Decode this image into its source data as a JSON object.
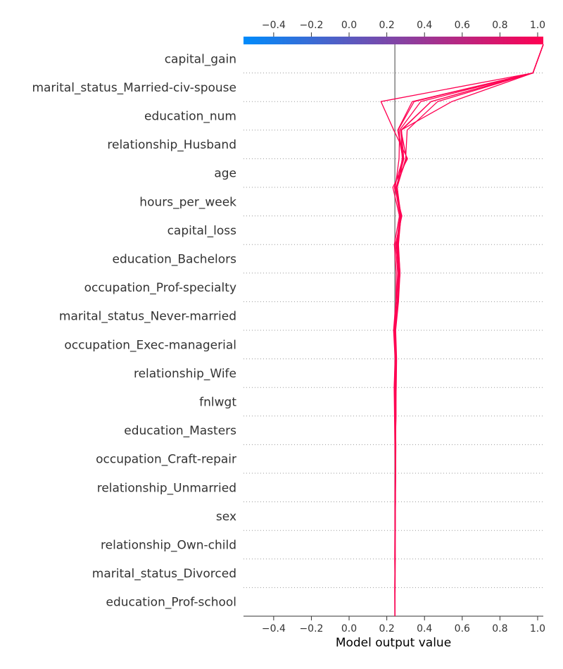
{
  "chart_data": {
    "type": "decision",
    "xlabel": "Model output value",
    "xlim": [
      -0.56,
      1.03
    ],
    "xticks": [
      -0.4,
      -0.2,
      0.0,
      0.2,
      0.4,
      0.6,
      0.8,
      1.0
    ],
    "xtick_labels": [
      "−0.4",
      "−0.2",
      "0.0",
      "0.2",
      "0.4",
      "0.6",
      "0.8",
      "1.0"
    ],
    "base_value": 0.243,
    "colorbar": {
      "range": [
        -0.56,
        1.03
      ],
      "colors": [
        "#008bfb",
        "#ff0052"
      ]
    },
    "grid": "dotted horizontal separators",
    "features": [
      "capital_gain",
      "marital_status_Married-civ-spouse",
      "education_num",
      "relationship_Husband",
      "age",
      "hours_per_week",
      "capital_loss",
      "education_Bachelors",
      "occupation_Prof-specialty",
      "marital_status_Never-married",
      "occupation_Exec-managerial",
      "relationship_Wife",
      "fnlwgt",
      "education_Masters",
      "occupation_Craft-repair",
      "relationship_Unmarried",
      "sex",
      "relationship_Own-child",
      "marital_status_Divorced",
      "education_Prof-school"
    ],
    "series": [
      {
        "color": "#ff0052",
        "values": [
          0.243,
          0.243,
          0.243,
          0.244,
          0.245,
          0.245,
          0.243,
          0.241,
          0.239,
          0.244,
          0.236,
          0.248,
          0.25,
          0.24,
          0.267,
          0.232,
          0.31,
          0.237,
          0.169,
          0.975,
          1.03
        ]
      },
      {
        "color": "#ff0052",
        "values": [
          0.243,
          0.244,
          0.242,
          0.243,
          0.244,
          0.246,
          0.244,
          0.243,
          0.24,
          0.245,
          0.238,
          0.25,
          0.258,
          0.246,
          0.28,
          0.24,
          0.285,
          0.258,
          0.335,
          0.975,
          1.03
        ]
      },
      {
        "color": "#ff0052",
        "values": [
          0.243,
          0.242,
          0.244,
          0.244,
          0.243,
          0.244,
          0.246,
          0.247,
          0.244,
          0.246,
          0.241,
          0.255,
          0.262,
          0.251,
          0.27,
          0.245,
          0.265,
          0.268,
          0.38,
          0.975,
          1.03
        ]
      },
      {
        "color": "#ff0052",
        "values": [
          0.243,
          0.243,
          0.244,
          0.245,
          0.246,
          0.245,
          0.247,
          0.248,
          0.248,
          0.25,
          0.245,
          0.26,
          0.267,
          0.258,
          0.277,
          0.25,
          0.29,
          0.278,
          0.435,
          0.975,
          1.03
        ]
      },
      {
        "color": "#ff0052",
        "values": [
          0.243,
          0.244,
          0.245,
          0.243,
          0.245,
          0.247,
          0.248,
          0.245,
          0.25,
          0.252,
          0.247,
          0.262,
          0.27,
          0.262,
          0.275,
          0.255,
          0.3,
          0.308,
          0.47,
          0.975,
          1.03
        ]
      },
      {
        "color": "#ff0052",
        "values": [
          0.243,
          0.243,
          0.243,
          0.244,
          0.245,
          0.246,
          0.245,
          0.249,
          0.249,
          0.248,
          0.243,
          0.258,
          0.27,
          0.26,
          0.272,
          0.255,
          0.282,
          0.275,
          0.435,
          0.975,
          1.03
        ]
      },
      {
        "color": "#ff0052",
        "values": [
          0.243,
          0.244,
          0.244,
          0.244,
          0.246,
          0.247,
          0.246,
          0.248,
          0.246,
          0.249,
          0.244,
          0.256,
          0.265,
          0.255,
          0.27,
          0.25,
          0.305,
          0.275,
          0.545,
          0.975,
          1.03
        ]
      },
      {
        "color": "#ff0052",
        "values": [
          0.243,
          0.243,
          0.244,
          0.245,
          0.245,
          0.245,
          0.245,
          0.246,
          0.245,
          0.247,
          0.242,
          0.256,
          0.262,
          0.255,
          0.275,
          0.252,
          0.29,
          0.26,
          0.345,
          0.975,
          1.03
        ]
      }
    ]
  }
}
